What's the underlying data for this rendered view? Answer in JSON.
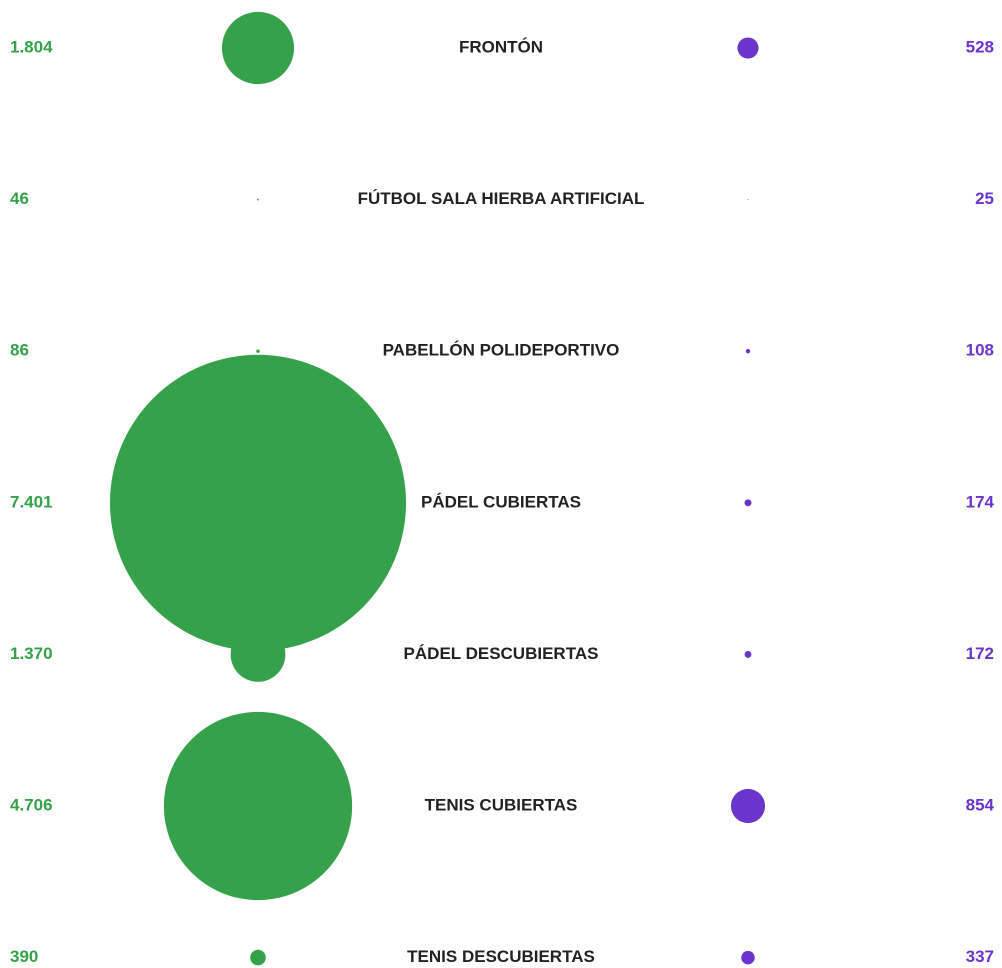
{
  "chart_data": {
    "type": "bubble",
    "categories": [
      "FRONTÓN",
      "FÚTBOL SALA HIERBA ARTIFICIAL",
      "PABELLÓN POLIDEPORTIVO",
      "PÁDEL CUBIERTAS",
      "PÁDEL DESCUBIERTAS",
      "TENIS CUBIERTAS",
      "TENIS DESCUBIERTAS"
    ],
    "series": [
      {
        "color": "#35a24b",
        "values": [
          1804,
          46,
          86,
          7401,
          1370,
          4706,
          390
        ],
        "value_labels": [
          "1.804",
          "46",
          "86",
          "7.401",
          "1.370",
          "4.706",
          "390"
        ]
      },
      {
        "color": "#6b35cc",
        "values": [
          528,
          25,
          108,
          174,
          172,
          854,
          337
        ],
        "value_labels": [
          "528",
          "25",
          "108",
          "174",
          "172",
          "854",
          "337"
        ]
      }
    ]
  }
}
